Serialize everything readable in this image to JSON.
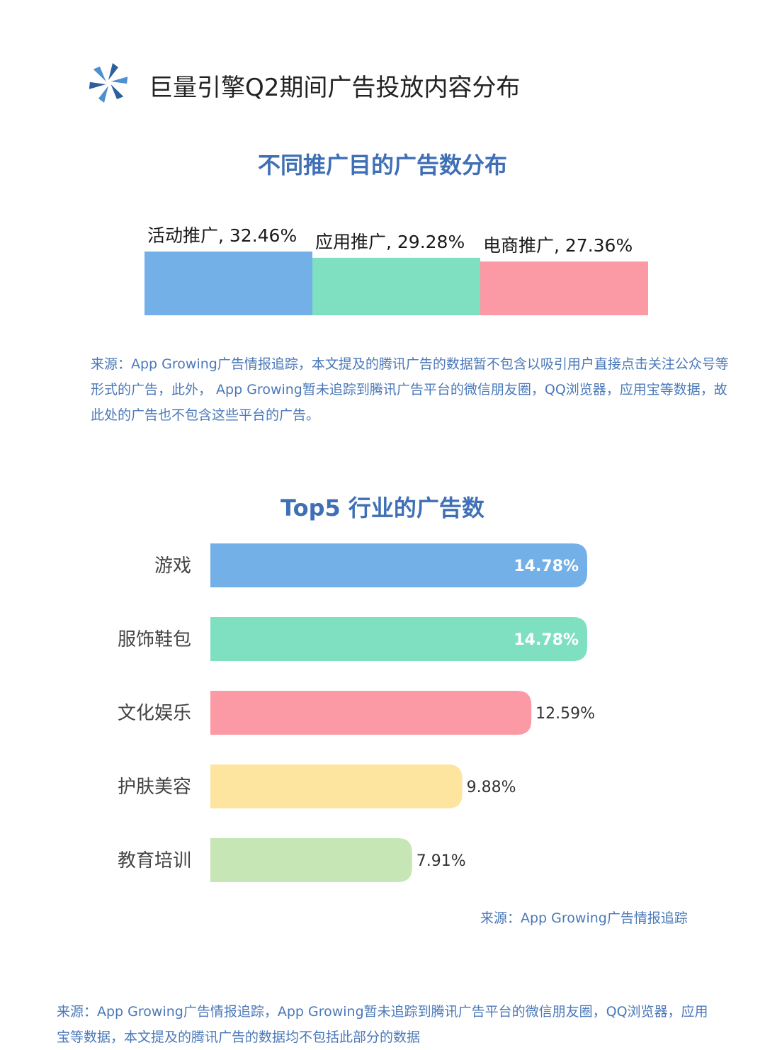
{
  "header": {
    "title": "巨量引擎Q2期间广告投放内容分布",
    "logo_icon": "pinwheel-logo-icon"
  },
  "chart_data": [
    {
      "type": "bar",
      "title": "不同推广目的广告数分布",
      "orientation": "vertical-step",
      "categories": [
        "活动推广",
        "应用推广",
        "电商推广"
      ],
      "values": [
        32.46,
        29.28,
        27.36
      ],
      "data_labels": [
        "活动推广, 32.46%",
        "应用推广, 29.28%",
        "电商推广, 27.36%"
      ],
      "colors": [
        "#74b0e8",
        "#7fe0c1",
        "#fb99a4"
      ],
      "ylim": [
        0,
        32.46
      ],
      "grid": false,
      "source_note": "来源：App Growing广告情报追踪，本文提及的腾讯广告的数据暂不包含以吸引用户直接点击关注公众号等形式的广告，此外， App Growing暂未追踪到腾讯广告平台的微信朋友圈，QQ浏览器，应用宝等数据，故此处的广告也不包含这些平台的广告。"
    },
    {
      "type": "bar",
      "title": "Top5 行业的广告数",
      "orientation": "horizontal",
      "categories": [
        "游戏",
        "服饰鞋包",
        "文化娱乐",
        "护肤美容",
        "教育培训"
      ],
      "values": [
        14.78,
        14.78,
        12.59,
        9.88,
        7.91
      ],
      "data_labels": [
        "14.78%",
        "14.78%",
        "12.59%",
        "9.88%",
        "7.91%"
      ],
      "label_inside": [
        true,
        true,
        false,
        false,
        false
      ],
      "colors": [
        "#74b0e8",
        "#7fe0c1",
        "#fb99a4",
        "#fde5a0",
        "#c6e6b5"
      ],
      "xlim": [
        0,
        14.78
      ],
      "grid": false,
      "source_note": "来源：App Growing广告情报追踪"
    }
  ],
  "footer": {
    "note": "来源：App Growing广告情报追踪，App Growing暂未追踪到腾讯广告平台的微信朋友圈，QQ浏览器，应用宝等数据，本文提及的腾讯广告的数据均不包括此部分的数据"
  }
}
